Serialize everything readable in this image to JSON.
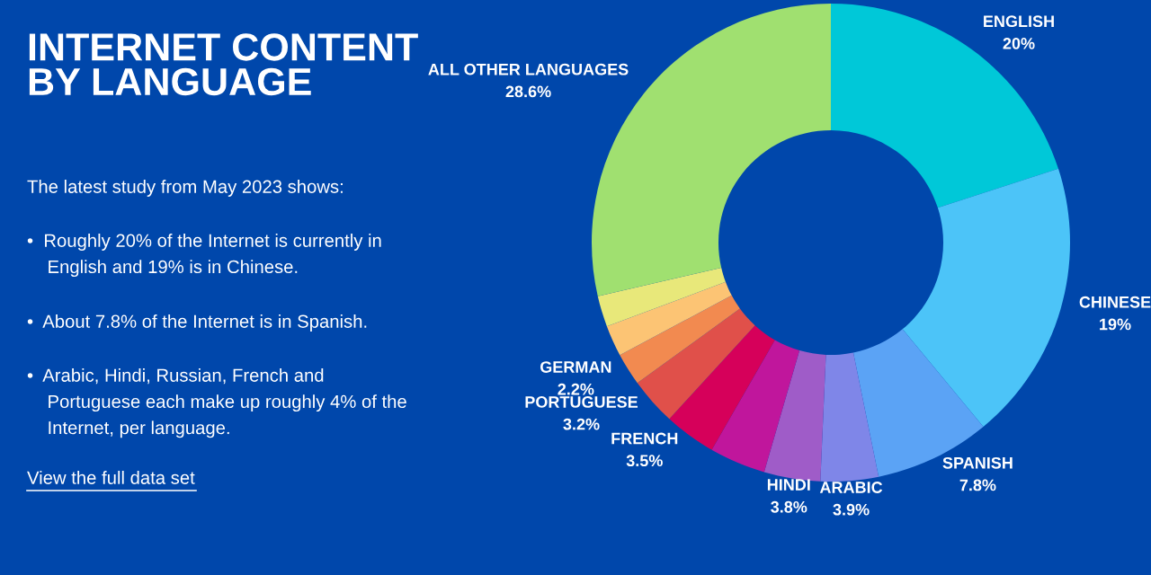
{
  "chart_data": {
    "type": "donut",
    "title": "INTERNET CONTENT\nBY LANGUAGE",
    "subtitle": "The latest study from May 2023 shows:",
    "annotations": [
      "•  Roughly 20% of the Internet is currently in\n    English and 19% is in Chinese.",
      "•  About 7.8% of the Internet is in Spanish.",
      "•  Arabic, Hindi, Russian, French and\n    Portuguese each make up roughly 4% of the\n    Internet, per language.",
      "View the full data set"
    ],
    "categories": [
      "ENGLISH",
      "CHINESE",
      "SPANISH",
      "ARABIC",
      "HINDI",
      null,
      "FRENCH",
      "PORTUGUESE",
      "GERMAN",
      null,
      null,
      "ALL OTHER LANGUAGES"
    ],
    "values": [
      20,
      19,
      7.8,
      3.9,
      3.8,
      3.8,
      3.5,
      3.2,
      2.2,
      2.1,
      2.1,
      28.6
    ],
    "value_labels": [
      "20%",
      "19%",
      "7.8%",
      "3.9%",
      "3.8%",
      null,
      "3.5%",
      "3.2%",
      "2.2%",
      null,
      null,
      "28.6%"
    ],
    "colors": [
      "#00c8d8",
      "#4cc4f8",
      "#5ba3f5",
      "#7f86e8",
      "#9f5cc8",
      "#c0169c",
      "#d6005a",
      "#e0504a",
      "#f28a50",
      "#fcc474",
      "#e8e87a",
      "#a0e070"
    ]
  }
}
